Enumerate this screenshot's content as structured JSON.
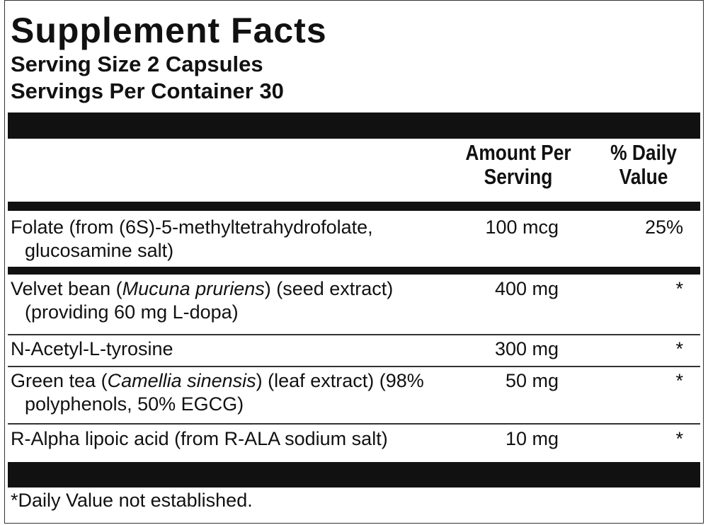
{
  "title": "Supplement Facts",
  "serving_size": "Serving Size 2 Capsules",
  "servings_per_container": "Servings Per Container 30",
  "table": {
    "headers": [
      "Amount Per Serving",
      "% Daily Value"
    ],
    "rows": [
      {
        "name": [
          "Folate (from (6S)-5-methyltetrahydrofolate,",
          "glucosamine salt)"
        ],
        "amount": "100 mcg",
        "dv": "25%"
      },
      {
        "name": [
          "Velvet bean (",
          "Mucuna pruriens",
          ") (seed extract)",
          "(providing 60 mg L-dopa)"
        ],
        "amount": "400 mg",
        "dv": "*"
      },
      {
        "name": [
          "N-Acetyl-L-tyrosine"
        ],
        "amount": "300 mg",
        "dv": "*"
      },
      {
        "name": [
          "Green tea (",
          "Camellia sinensis",
          ") (leaf extract) (98%",
          "polyphenols, 50% EGCG)"
        ],
        "amount": "50 mg",
        "dv": "*"
      },
      {
        "name": [
          "R-Alpha lipoic acid (from R-ALA sodium salt)"
        ],
        "amount": "10 mg",
        "dv": "*"
      }
    ]
  },
  "footnote": "*Daily Value not established."
}
